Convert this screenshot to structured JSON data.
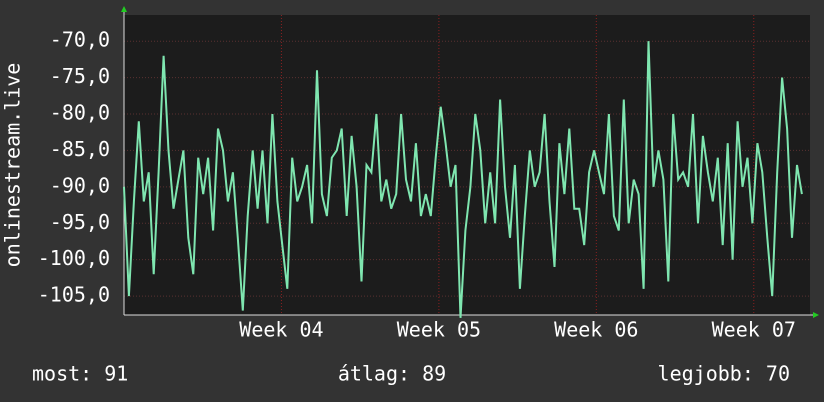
{
  "chart_data": {
    "type": "line",
    "y_label": "onlinestream.live",
    "x": [
      0,
      0.22,
      0.44,
      0.66,
      0.88,
      1.1,
      1.32,
      1.54,
      1.76,
      1.98,
      2.2,
      2.42,
      2.64,
      2.86,
      3.08,
      3.3,
      3.52,
      3.74,
      3.96,
      4.18,
      4.4,
      4.62,
      4.84,
      5.06,
      5.28,
      5.5,
      5.72,
      5.94,
      6.16,
      6.38,
      6.6,
      6.82,
      7.04,
      7.26,
      7.48,
      7.7,
      7.92,
      8.14,
      8.36,
      8.58,
      8.8,
      9.02,
      9.24,
      9.46,
      9.68,
      9.9,
      10.12,
      10.34,
      10.56,
      10.78,
      11,
      11.22,
      11.44,
      11.66,
      11.88,
      12.1,
      12.32,
      12.54,
      12.76,
      12.98,
      13.2,
      13.42,
      13.64,
      13.86,
      14.08,
      14.3,
      14.52,
      14.74,
      14.96,
      15.18,
      15.4,
      15.62,
      15.84,
      16.06,
      16.28,
      16.5,
      16.72,
      16.94,
      17.16,
      17.38,
      17.6,
      17.82,
      18.04,
      18.26,
      18.48,
      18.7,
      18.92,
      19.14,
      19.36,
      19.58,
      19.8,
      20.02,
      20.24,
      20.46,
      20.68,
      20.9,
      21.12,
      21.34,
      21.56,
      21.78,
      22,
      22.22,
      22.44,
      22.66,
      22.88,
      23.1,
      23.32,
      23.54,
      23.76,
      23.98,
      24.2,
      24.42,
      24.64,
      24.86,
      25.08,
      25.3,
      25.52,
      25.74,
      25.96,
      26.18,
      26.4,
      26.62,
      26.84,
      27.06,
      27.28,
      27.5,
      27.72,
      27.94,
      28.16,
      28.38,
      28.6,
      28.82,
      29.04,
      29.26,
      29.48,
      29.7,
      29.92,
      30.14
    ],
    "series": [
      {
        "color": "#7fe6b0",
        "values": [
          -90,
          -105,
          -92,
          -81,
          -92,
          -88,
          -102,
          -88,
          -72,
          -85,
          -93,
          -89,
          -85,
          -97,
          -102,
          -86,
          -91,
          -86,
          -96,
          -82,
          -85,
          -92,
          -88,
          -97,
          -107,
          -94,
          -85,
          -93,
          -85,
          -95,
          -80,
          -92,
          -98,
          -104,
          -86,
          -92,
          -90,
          -87,
          -95,
          -74,
          -91,
          -94,
          -86,
          -85,
          -82,
          -94,
          -83,
          -90,
          -103,
          -87,
          -88,
          -80,
          -92,
          -89,
          -93,
          -91,
          -80,
          -89,
          -92,
          -84,
          -94,
          -91,
          -94,
          -86,
          -79,
          -84,
          -90,
          -87,
          -108,
          -96,
          -90,
          -80,
          -85,
          -95,
          -88,
          -95,
          -78,
          -90,
          -97,
          -87,
          -104,
          -94,
          -85,
          -90,
          -88,
          -80,
          -92,
          -101,
          -84,
          -91,
          -82,
          -93,
          -93,
          -98,
          -88,
          -85,
          -88,
          -91,
          -80,
          -94,
          -96,
          -78,
          -95,
          -89,
          -91,
          -104,
          -70,
          -90,
          -85,
          -89,
          -103,
          -80,
          -89,
          -88,
          -90,
          -80,
          -95,
          -83,
          -88,
          -92,
          -86,
          -98,
          -84,
          -100,
          -81,
          -90,
          -86,
          -95,
          -84,
          -88,
          -97,
          -105,
          -88,
          -75,
          -82,
          -97,
          -87,
          -91
        ]
      }
    ],
    "xlim": [
      0,
      30.5
    ],
    "xticks": [
      {
        "value": 7,
        "label": "Week 04"
      },
      {
        "value": 14,
        "label": "Week 05"
      },
      {
        "value": 21,
        "label": "Week 06"
      },
      {
        "value": 28,
        "label": "Week 07"
      }
    ],
    "ylim": [
      -107.6,
      -66.4
    ],
    "yticks": [
      {
        "value": -70,
        "label": "-70,0"
      },
      {
        "value": -75,
        "label": "-75,0"
      },
      {
        "value": -80,
        "label": "-80,0"
      },
      {
        "value": -85,
        "label": "-85,0"
      },
      {
        "value": -90,
        "label": "-90,0"
      },
      {
        "value": -95,
        "label": "-95,0"
      },
      {
        "value": -100,
        "label": "-100,0"
      },
      {
        "value": -105,
        "label": "-105,0"
      }
    ],
    "grid": true,
    "summary": [
      "most: 91",
      "átlag: 89",
      "legjobb: 70"
    ]
  }
}
